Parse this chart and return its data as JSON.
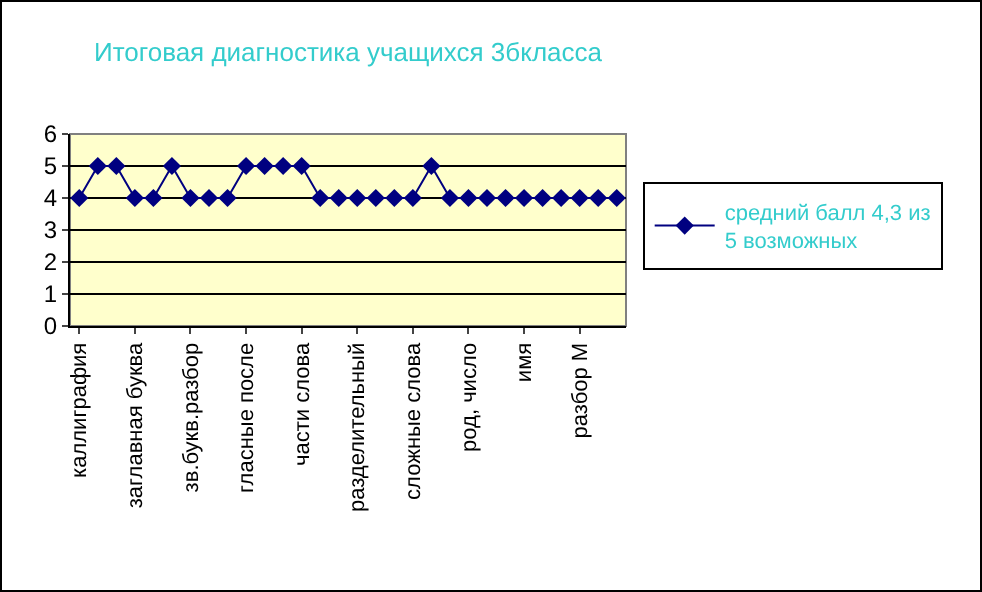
{
  "chart_data": {
    "type": "line",
    "title": "Итоговая диагностика учащихся 3бкласса",
    "categories": [
      "каллиграфия",
      null,
      null,
      "заглавная буква",
      null,
      null,
      "зв.букв.разбор",
      null,
      null,
      "гласные после",
      null,
      null,
      "части слова",
      null,
      null,
      "разделительный",
      null,
      null,
      "сложные слова",
      null,
      null,
      "род, число",
      null,
      null,
      "имя",
      null,
      null,
      "разбор М",
      null,
      null
    ],
    "series": [
      {
        "name": "средний балл 4,3 из 5 возможных",
        "color": "#000080",
        "values": [
          4,
          5,
          5,
          4,
          4,
          5,
          4,
          4,
          4,
          5,
          5,
          5,
          5,
          4,
          4,
          4,
          4,
          4,
          4,
          5,
          4,
          4,
          4,
          4,
          4,
          4,
          4,
          4,
          4,
          4
        ]
      }
    ],
    "ylim": [
      0,
      6
    ],
    "yticks": [
      0,
      1,
      2,
      3,
      4,
      5,
      6
    ],
    "grid": "y",
    "legend": "right",
    "marker": "diamond",
    "line_style": "solid"
  }
}
